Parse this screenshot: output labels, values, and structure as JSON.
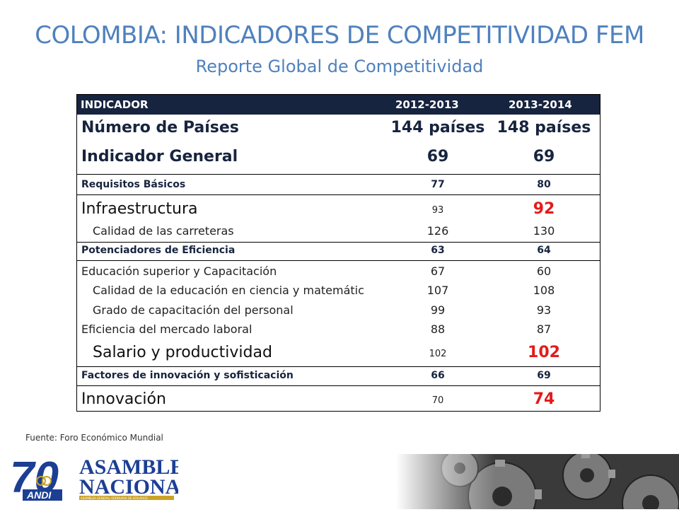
{
  "title": "COLOMBIA: INDICADORES DE COMPETITIVIDAD FEM",
  "subtitle": "Reporte Global de Competitividad",
  "table": {
    "headers": [
      "INDICADOR",
      "2012-2013",
      "2013-2014"
    ],
    "rows": [
      {
        "label": "Número de Países",
        "v1": "144 países",
        "v2": "148 países"
      },
      {
        "label": "Indicador General",
        "v1": "69",
        "v2": "69"
      },
      {
        "label": "Requisitos Básicos",
        "v1": "77",
        "v2": "80"
      },
      {
        "label": "Infraestructura",
        "v1": "93",
        "v2": "92"
      },
      {
        "label": "Calidad de las carreteras",
        "v1": "126",
        "v2": "130"
      },
      {
        "label": "Potenciadores de Eficiencia",
        "v1": "63",
        "v2": "64"
      },
      {
        "label": "Educación superior y Capacitación",
        "v1": "67",
        "v2": "60"
      },
      {
        "label": "Calidad de la educación en ciencia y matemátic",
        "v1": "107",
        "v2": "108"
      },
      {
        "label": "Grado de capacitación del personal",
        "v1": "99",
        "v2": "93"
      },
      {
        "label": "Eficiencia del mercado laboral",
        "v1": "88",
        "v2": "87"
      },
      {
        "label": "Salario y productividad",
        "v1": "102",
        "v2": "102"
      },
      {
        "label": "Factores de innovación y sofisticación",
        "v1": "66",
        "v2": "69"
      },
      {
        "label": "Innovación",
        "v1": "70",
        "v2": "74"
      }
    ]
  },
  "source": "Fuente: Foro Económico Mundial",
  "logo": {
    "number": "70",
    "brand": "ANDI",
    "line1": "ASAMBLEA",
    "line2": "NACIONAL",
    "tagline": "ASAMBLEA GENERAL ORDINARIA DE AFILIADOS"
  },
  "colors": {
    "title": "#4f81bd",
    "header_bg": "#17243f",
    "highlight": "#e31b1b"
  }
}
